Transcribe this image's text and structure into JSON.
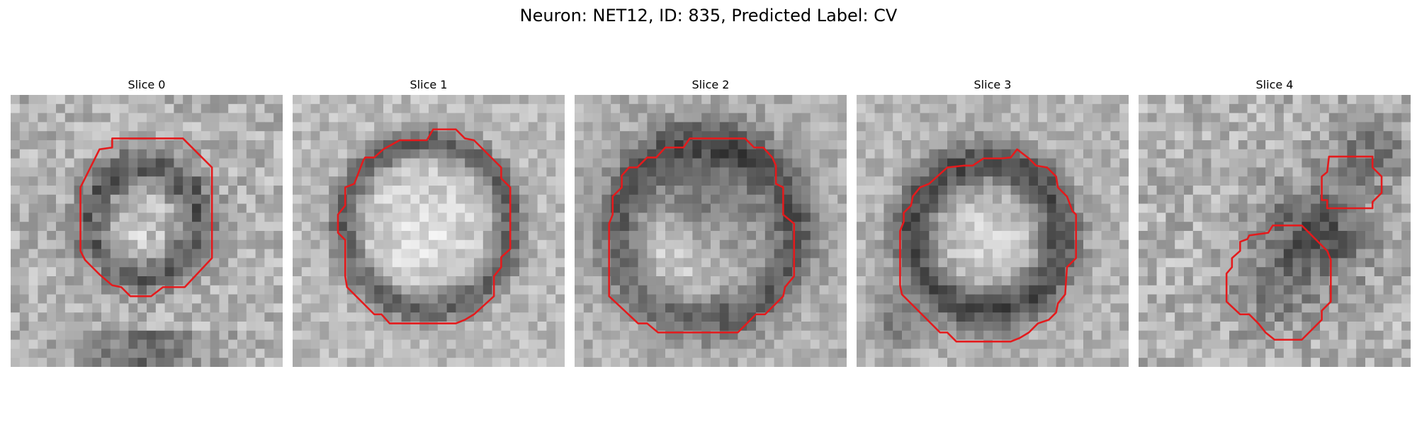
{
  "figure": {
    "title": "Neuron: NET12, ID: 835, Predicted Label: CV"
  },
  "panels": [
    {
      "title": "Slice 0",
      "contour_color": "#e41a1c"
    },
    {
      "title": "Slice 1",
      "contour_color": "#e41a1c"
    },
    {
      "title": "Slice 2",
      "contour_color": "#e41a1c"
    },
    {
      "title": "Slice 3",
      "contour_color": "#e41a1c"
    },
    {
      "title": "Slice 4",
      "contour_color": "#e41a1c"
    }
  ],
  "image_colormap": "grayscale"
}
